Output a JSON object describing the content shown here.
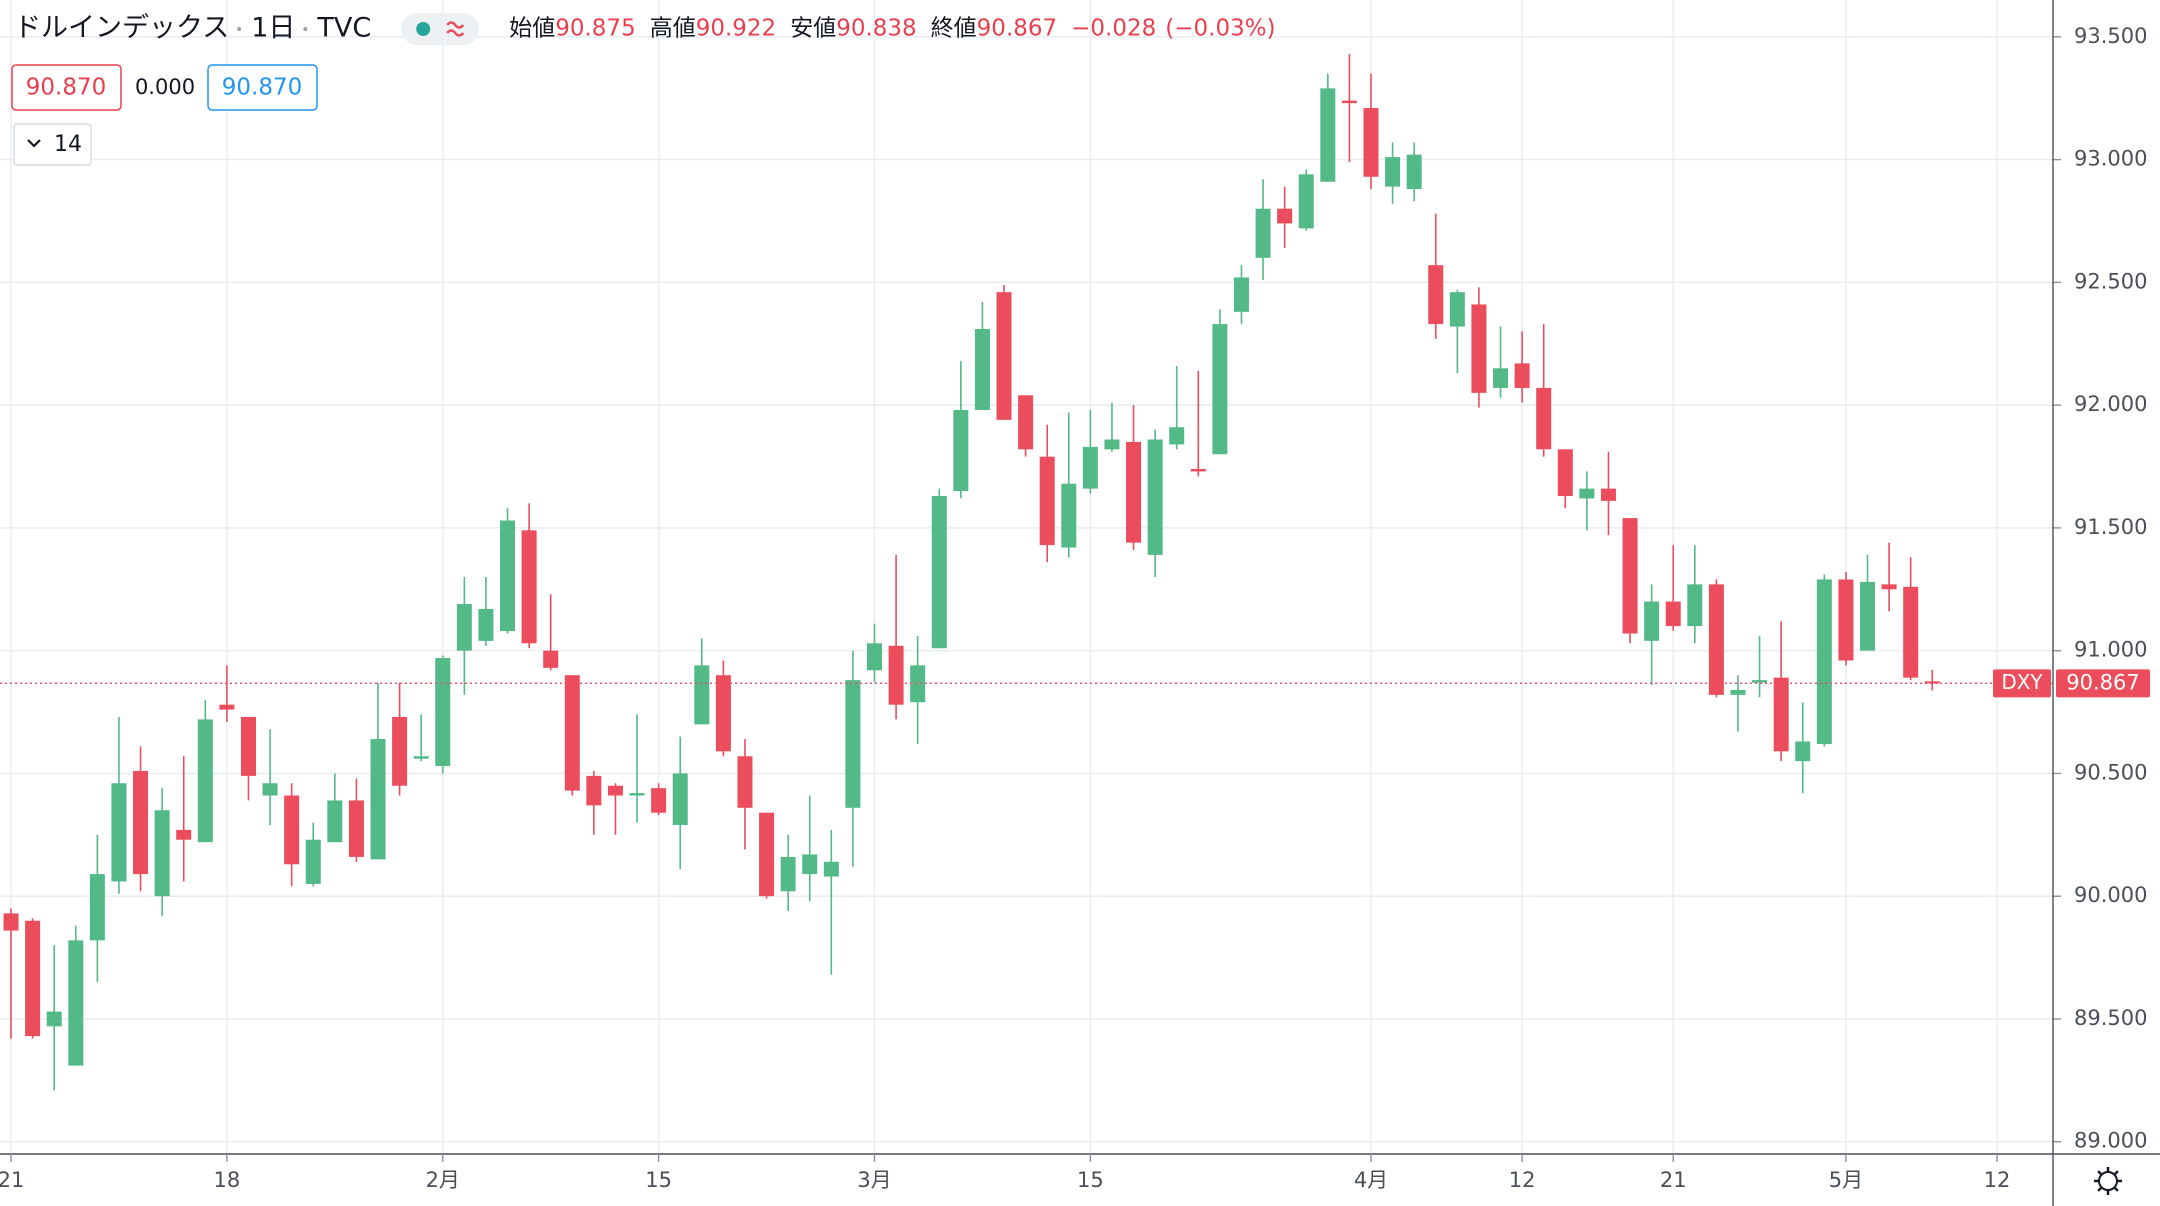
{
  "chart_data": {
    "type": "candlestick",
    "title": "ドルインデックス",
    "interval": "1日",
    "source": "TVC",
    "symbol": "DXY",
    "header": {
      "open_label": "始値",
      "high_label": "高値",
      "low_label": "安値",
      "close_label": "終値",
      "change": "−0.028",
      "change_pct": "(−0.03%)"
    },
    "buttons": {
      "sell": "90.870",
      "spread": "0.000",
      "buy": "90.870"
    },
    "indicator_count": 14,
    "categories": [
      "21",
      null,
      null,
      null,
      null,
      null,
      null,
      null,
      null,
      null,
      "18",
      null,
      null,
      null,
      null,
      null,
      null,
      null,
      null,
      null,
      "2月",
      null,
      null,
      null,
      null,
      null,
      null,
      null,
      null,
      null,
      "15",
      null,
      null,
      null,
      null,
      null,
      null,
      null,
      null,
      null,
      "3月",
      null,
      null,
      null,
      null,
      null,
      null,
      null,
      null,
      null,
      "15",
      null,
      null,
      null,
      null,
      null,
      null,
      null,
      null,
      null,
      null,
      null,
      null,
      "4月",
      null,
      null,
      null,
      null,
      null,
      null,
      "12",
      null,
      null,
      null,
      null,
      null,
      null,
      "21",
      null,
      null,
      null,
      null,
      null,
      null,
      null,
      "5月",
      null,
      null,
      null,
      null,
      null,
      null,
      "12"
    ],
    "open": [
      89.93,
      89.9,
      89.47,
      89.31,
      89.82,
      90.06,
      90.51,
      90.0,
      90.27,
      90.22,
      90.78,
      90.73,
      90.41,
      90.41,
      90.05,
      90.22,
      90.39,
      90.15,
      90.73,
      90.56,
      90.53,
      91.0,
      91.04,
      91.08,
      91.49,
      91.0,
      90.9,
      90.49,
      90.45,
      90.41,
      90.44,
      90.29,
      90.7,
      90.9,
      90.57,
      90.34,
      90.02,
      90.09,
      90.08,
      90.36,
      90.92,
      91.02,
      90.79,
      91.01,
      91.65,
      91.98,
      92.46,
      92.04,
      91.79,
      91.42,
      91.66,
      91.82,
      91.85,
      91.39,
      91.84,
      91.74,
      91.8,
      92.38,
      92.6,
      92.8,
      92.72,
      92.91,
      93.24,
      93.21,
      92.89,
      92.88,
      92.57,
      92.32,
      92.41,
      92.07,
      92.17,
      92.07,
      91.82,
      91.62,
      91.66,
      91.54,
      91.04,
      91.2,
      91.1,
      91.27,
      90.82,
      90.87,
      90.89,
      90.55,
      90.62,
      91.29,
      91.0,
      91.27,
      91.26,
      90.875,
      null,
      null,
      null
    ],
    "high": [
      89.95,
      89.91,
      89.8,
      89.88,
      90.25,
      90.73,
      90.61,
      90.44,
      90.57,
      90.8,
      90.94,
      90.73,
      90.68,
      90.46,
      90.3,
      90.5,
      90.48,
      90.87,
      90.87,
      90.74,
      90.98,
      91.3,
      91.3,
      91.58,
      91.6,
      91.23,
      90.9,
      90.51,
      90.46,
      90.74,
      90.46,
      90.65,
      91.05,
      90.96,
      90.64,
      90.34,
      90.25,
      90.41,
      90.27,
      91.0,
      91.11,
      91.39,
      91.06,
      91.66,
      92.18,
      92.42,
      92.49,
      92.04,
      91.92,
      91.97,
      91.98,
      92.01,
      92.0,
      91.9,
      92.16,
      92.14,
      92.39,
      92.57,
      92.92,
      92.89,
      92.96,
      93.35,
      93.43,
      93.35,
      93.07,
      93.07,
      92.78,
      92.47,
      92.48,
      92.32,
      92.3,
      92.33,
      91.82,
      91.73,
      91.81,
      91.54,
      91.27,
      91.43,
      91.43,
      91.29,
      90.9,
      91.06,
      91.12,
      90.79,
      91.31,
      91.32,
      91.39,
      91.44,
      91.38,
      90.922,
      null,
      null,
      null
    ],
    "low": [
      89.42,
      89.42,
      89.21,
      89.31,
      89.65,
      90.01,
      90.02,
      89.92,
      90.06,
      90.22,
      90.71,
      90.39,
      90.29,
      90.04,
      90.04,
      90.22,
      90.14,
      90.15,
      90.41,
      90.55,
      90.5,
      90.82,
      91.02,
      91.07,
      91.01,
      90.92,
      90.41,
      90.25,
      90.25,
      90.3,
      90.33,
      90.11,
      90.7,
      90.57,
      90.19,
      89.99,
      89.94,
      89.98,
      89.68,
      90.12,
      90.87,
      90.72,
      90.62,
      91.01,
      91.62,
      91.98,
      91.94,
      91.79,
      91.36,
      91.38,
      91.64,
      91.81,
      91.41,
      91.3,
      91.82,
      91.71,
      91.8,
      92.33,
      92.51,
      92.64,
      92.71,
      92.91,
      92.99,
      92.88,
      92.82,
      92.83,
      92.27,
      92.13,
      91.99,
      92.03,
      92.01,
      91.79,
      91.58,
      91.49,
      91.47,
      91.03,
      90.86,
      91.08,
      91.03,
      90.81,
      90.67,
      90.81,
      90.55,
      90.42,
      90.61,
      90.94,
      91.0,
      91.16,
      90.88,
      90.838,
      null,
      null,
      null
    ],
    "close": [
      89.86,
      89.43,
      89.53,
      89.82,
      90.09,
      90.46,
      90.09,
      90.35,
      90.23,
      90.72,
      90.76,
      90.49,
      90.46,
      90.13,
      90.23,
      90.39,
      90.16,
      90.64,
      90.45,
      90.57,
      90.97,
      91.19,
      91.17,
      91.53,
      91.03,
      90.93,
      90.43,
      90.37,
      90.41,
      90.42,
      90.34,
      90.5,
      90.94,
      90.59,
      90.36,
      90.0,
      90.16,
      90.17,
      90.14,
      90.88,
      91.03,
      90.78,
      90.94,
      91.63,
      91.98,
      92.31,
      91.94,
      91.82,
      91.43,
      91.68,
      91.83,
      91.86,
      91.44,
      91.86,
      91.91,
      91.73,
      92.33,
      92.52,
      92.8,
      92.74,
      92.94,
      93.29,
      93.23,
      92.93,
      93.01,
      93.02,
      92.33,
      92.46,
      92.05,
      92.15,
      92.07,
      91.82,
      91.63,
      91.66,
      91.61,
      91.07,
      91.2,
      91.1,
      91.27,
      90.82,
      90.84,
      90.88,
      90.59,
      90.63,
      91.29,
      90.96,
      91.28,
      91.25,
      90.89,
      90.867,
      null,
      null,
      null
    ],
    "up_color": "#53b987",
    "down_color": "#eb4d5c",
    "ylim": [
      88.95,
      93.65
    ],
    "yticks": [
      {
        "value": 89,
        "label": "89.000"
      },
      {
        "value": 89.5,
        "label": "89.500"
      },
      {
        "value": 90,
        "label": "90.000"
      },
      {
        "value": 90.5,
        "label": "90.500"
      },
      {
        "value": 91,
        "label": "91.000"
      },
      {
        "value": 91.5,
        "label": "91.500"
      },
      {
        "value": 92,
        "label": "92.000"
      },
      {
        "value": 92.5,
        "label": "92.500"
      },
      {
        "value": 93,
        "label": "93.000"
      },
      {
        "value": 93.5,
        "label": "93.500"
      }
    ],
    "grid": true
  }
}
